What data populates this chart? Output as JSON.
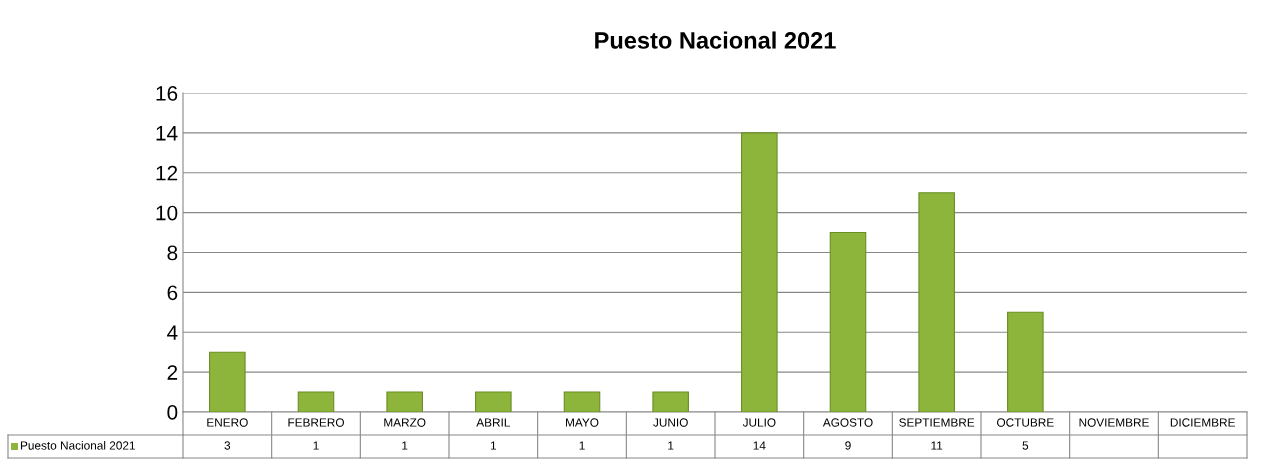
{
  "chart_data": {
    "type": "bar",
    "title": "Puesto Nacional 2021",
    "categories": [
      "ENERO",
      "FEBRERO",
      "MARZO",
      "ABRIL",
      "MAYO",
      "JUNIO",
      "JULIO",
      "AGOSTO",
      "SEPTIEMBRE",
      "OCTUBRE",
      "NOVIEMBRE",
      "DICIEMBRE"
    ],
    "series": [
      {
        "name": "Puesto Nacional 2021",
        "color": "#8db53c",
        "values": [
          3,
          1,
          1,
          1,
          1,
          1,
          14,
          9,
          11,
          5,
          null,
          null
        ]
      }
    ],
    "ylim": [
      0,
      16
    ],
    "yticks": [
      0,
      2,
      4,
      6,
      8,
      10,
      12,
      14,
      16
    ],
    "grid": "y",
    "data_labels": true,
    "legend": "bottom left"
  }
}
